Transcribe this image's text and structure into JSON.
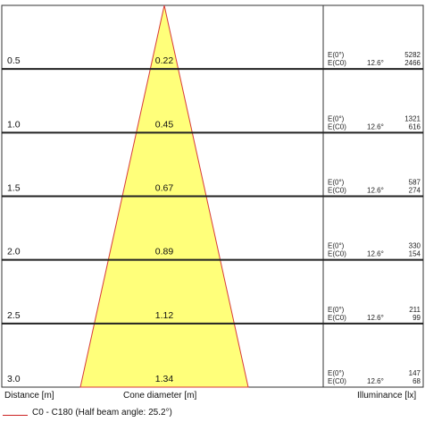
{
  "chart_data": {
    "type": "table",
    "beam_color": "#ffff7a",
    "beam_edge_color": "#d83a3a",
    "rows": [
      {
        "distance": "0.5",
        "diameter": "0.22",
        "e0_label": "E(0°)",
        "ec0_label": "E(C0)",
        "angle": "12.6°",
        "e0": "5282",
        "ec0": "2466"
      },
      {
        "distance": "1.0",
        "diameter": "0.45",
        "e0_label": "E(0°)",
        "ec0_label": "E(C0)",
        "angle": "12.6°",
        "e0": "1321",
        "ec0": "616"
      },
      {
        "distance": "1.5",
        "diameter": "0.67",
        "e0_label": "E(0°)",
        "ec0_label": "E(C0)",
        "angle": "12.6°",
        "e0": "587",
        "ec0": "274"
      },
      {
        "distance": "2.0",
        "diameter": "0.89",
        "e0_label": "E(0°)",
        "ec0_label": "E(C0)",
        "angle": "12.6°",
        "e0": "330",
        "ec0": "154"
      },
      {
        "distance": "2.5",
        "diameter": "1.12",
        "e0_label": "E(0°)",
        "ec0_label": "E(C0)",
        "angle": "12.6°",
        "e0": "211",
        "ec0": "99"
      },
      {
        "distance": "3.0",
        "diameter": "1.34",
        "e0_label": "E(0°)",
        "ec0_label": "E(C0)",
        "angle": "12.6°",
        "e0": "147",
        "ec0": "68"
      }
    ],
    "footer": {
      "distance_label": "Distance [m]",
      "diameter_label": "Cone diameter [m]",
      "illuminance_label": "Illuminance [lx]"
    },
    "legend": {
      "label": "C0 - C180 (Half beam angle: 25.2°)"
    }
  }
}
